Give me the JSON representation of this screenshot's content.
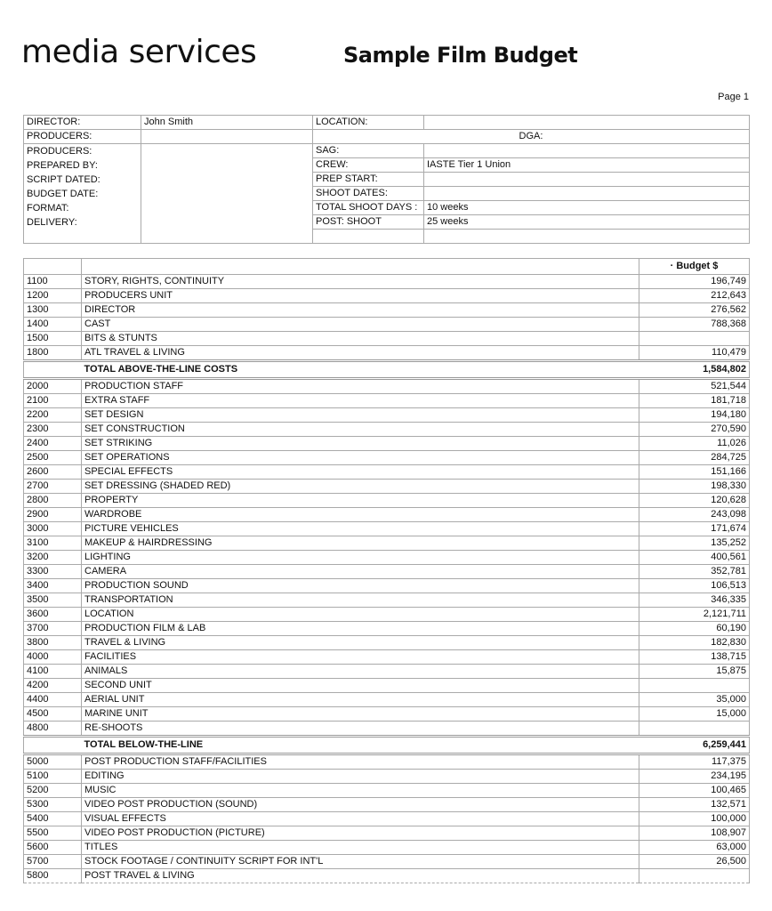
{
  "header": {
    "logo_text": "media services",
    "title": "Sample Film Budget",
    "page_label": "Page 1"
  },
  "info": {
    "director_label": "DIRECTOR:",
    "director_value": "John Smith",
    "producers_label": "PRODUCERS:",
    "left_labels": [
      "PRODUCERS:",
      "PREPARED BY:",
      "SCRIPT DATED:",
      "BUDGET DATE:",
      "FORMAT:",
      "DELIVERY:"
    ],
    "location_label": "LOCATION:",
    "location_value": "",
    "dga_label": "DGA:",
    "right_rows": [
      {
        "label": "SAG:",
        "value": ""
      },
      {
        "label": "CREW:",
        "value": "IASTE Tier 1 Union"
      },
      {
        "label": "PREP START:",
        "value": ""
      },
      {
        "label": "SHOOT DATES:",
        "value": ""
      },
      {
        "label": "TOTAL SHOOT DAYS :",
        "value": "10 weeks"
      },
      {
        "label": "POST: SHOOT",
        "value": "25 weeks"
      },
      {
        "label": "",
        "value": ""
      }
    ]
  },
  "budget": {
    "column_header": "· Budget $",
    "rows": [
      {
        "code": "1100",
        "desc": "STORY, RIGHTS, CONTINUITY",
        "amount": "196,749"
      },
      {
        "code": "1200",
        "desc": "PRODUCERS UNIT",
        "amount": "212,643"
      },
      {
        "code": "1300",
        "desc": "DIRECTOR",
        "amount": "276,562"
      },
      {
        "code": "1400",
        "desc": "CAST",
        "amount": "788,368"
      },
      {
        "code": "1500",
        "desc": "BITS & STUNTS",
        "amount": ""
      },
      {
        "code": "1800",
        "desc": "ATL TRAVEL & LIVING",
        "amount": "110,479"
      },
      {
        "code": "",
        "desc": "TOTAL ABOVE-THE-LINE COSTS",
        "amount": "1,584,802",
        "total": true
      },
      {
        "code": "2000",
        "desc": "PRODUCTION STAFF",
        "amount": "521,544"
      },
      {
        "code": "2100",
        "desc": "EXTRA STAFF",
        "amount": "181,718"
      },
      {
        "code": "2200",
        "desc": "SET DESIGN",
        "amount": "194,180"
      },
      {
        "code": "2300",
        "desc": "SET CONSTRUCTION",
        "amount": "270,590"
      },
      {
        "code": "2400",
        "desc": "SET STRIKING",
        "amount": "11,026"
      },
      {
        "code": "2500",
        "desc": "SET OPERATIONS",
        "amount": "284,725"
      },
      {
        "code": "2600",
        "desc": "SPECIAL EFFECTS",
        "amount": "151,166"
      },
      {
        "code": "2700",
        "desc": "SET DRESSING (SHADED RED)",
        "amount": "198,330"
      },
      {
        "code": "2800",
        "desc": "PROPERTY",
        "amount": "120,628"
      },
      {
        "code": "2900",
        "desc": "WARDROBE",
        "amount": "243,098"
      },
      {
        "code": "3000",
        "desc": "PICTURE VEHICLES",
        "amount": "171,674"
      },
      {
        "code": "3100",
        "desc": "MAKEUP & HAIRDRESSING",
        "amount": "135,252"
      },
      {
        "code": "3200",
        "desc": "LIGHTING",
        "amount": "400,561"
      },
      {
        "code": "3300",
        "desc": "CAMERA",
        "amount": "352,781"
      },
      {
        "code": "3400",
        "desc": "PRODUCTION SOUND",
        "amount": "106,513"
      },
      {
        "code": "3500",
        "desc": "TRANSPORTATION",
        "amount": "346,335"
      },
      {
        "code": "3600",
        "desc": "LOCATION",
        "amount": "2,121,711"
      },
      {
        "code": "3700",
        "desc": "PRODUCTION FILM & LAB",
        "amount": "60,190"
      },
      {
        "code": "3800",
        "desc": "TRAVEL & LIVING",
        "amount": "182,830"
      },
      {
        "code": "4000",
        "desc": "FACILITIES",
        "amount": "138,715"
      },
      {
        "code": "4100",
        "desc": "ANIMALS",
        "amount": "15,875"
      },
      {
        "code": "4200",
        "desc": "SECOND UNIT",
        "amount": ""
      },
      {
        "code": "4400",
        "desc": "AERIAL UNIT",
        "amount": "35,000"
      },
      {
        "code": "4500",
        "desc": "MARINE UNIT",
        "amount": "15,000"
      },
      {
        "code": "4800",
        "desc": "RE-SHOOTS",
        "amount": ""
      },
      {
        "code": "",
        "desc": "TOTAL BELOW-THE-LINE",
        "amount": "6,259,441",
        "total": true
      },
      {
        "code": "5000",
        "desc": "POST PRODUCTION STAFF/FACILITIES",
        "amount": "117,375"
      },
      {
        "code": "5100",
        "desc": "EDITING",
        "amount": "234,195"
      },
      {
        "code": "5200",
        "desc": "MUSIC",
        "amount": "100,465"
      },
      {
        "code": "5300",
        "desc": "VIDEO POST PRODUCTION (SOUND)",
        "amount": "132,571"
      },
      {
        "code": "5400",
        "desc": "VISUAL EFFECTS",
        "amount": "100,000"
      },
      {
        "code": "5500",
        "desc": "VIDEO POST PRODUCTION (PICTURE)",
        "amount": "108,907"
      },
      {
        "code": "5600",
        "desc": "TITLES",
        "amount": "63,000"
      },
      {
        "code": "5700",
        "desc": "STOCK FOOTAGE / CONTINUITY SCRIPT FOR INT'L",
        "amount": "26,500"
      },
      {
        "code": "5800",
        "desc": "POST TRAVEL & LIVING",
        "amount": ""
      }
    ]
  }
}
